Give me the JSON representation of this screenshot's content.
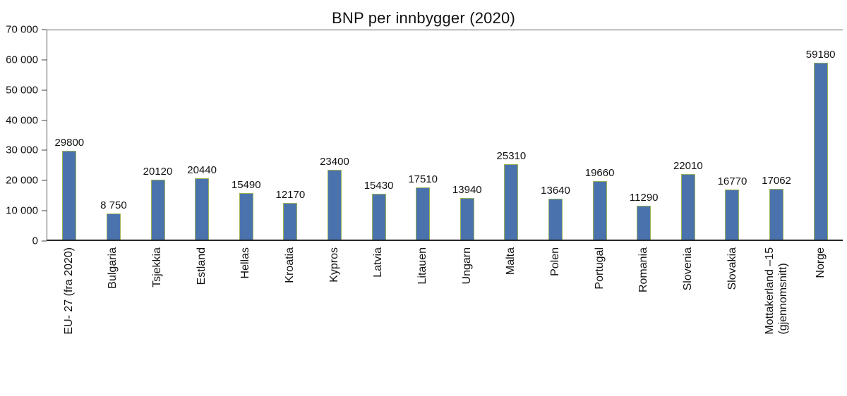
{
  "chart_data": {
    "type": "bar",
    "title": "BNP per innbygger (2020)",
    "categories": [
      "EU- 27 (fra 2020)",
      "Bulgaria",
      "Tsjekkia",
      "Estland",
      "Hellas",
      "Kroatia",
      "Kypros",
      "Latvia",
      "Litauen",
      "Ungarn",
      "Malta",
      "Polen",
      "Portugal",
      "Romania",
      "Slovenia",
      "Slovakia",
      "Mottakerland –15\n(gjennomsnitt)",
      "Norge"
    ],
    "values": [
      29800,
      8750,
      20120,
      20440,
      15490,
      12170,
      23400,
      15430,
      17510,
      13940,
      25310,
      13640,
      19660,
      11290,
      22010,
      16770,
      17062,
      59180
    ],
    "value_labels": [
      "29800",
      "8 750",
      "20120",
      "20440",
      "15490",
      "12170",
      "23400",
      "15430",
      "17510",
      "13940",
      "25310",
      "13640",
      "19660",
      "11290",
      "22010",
      "16770",
      "17062",
      "59180"
    ],
    "ylim": [
      0,
      70000
    ],
    "yticks": [
      {
        "value": 0,
        "label": "0"
      },
      {
        "value": 10000,
        "label": "10 000"
      },
      {
        "value": 20000,
        "label": "20 000"
      },
      {
        "value": 30000,
        "label": "30 000"
      },
      {
        "value": 40000,
        "label": "40 000"
      },
      {
        "value": 50000,
        "label": "50 000"
      },
      {
        "value": 60000,
        "label": "60 000"
      },
      {
        "value": 70000,
        "label": "70 000"
      }
    ],
    "bar_color": "#4a73ae",
    "bar_border_color": "#9db356",
    "grid": "off",
    "legend": "none"
  }
}
